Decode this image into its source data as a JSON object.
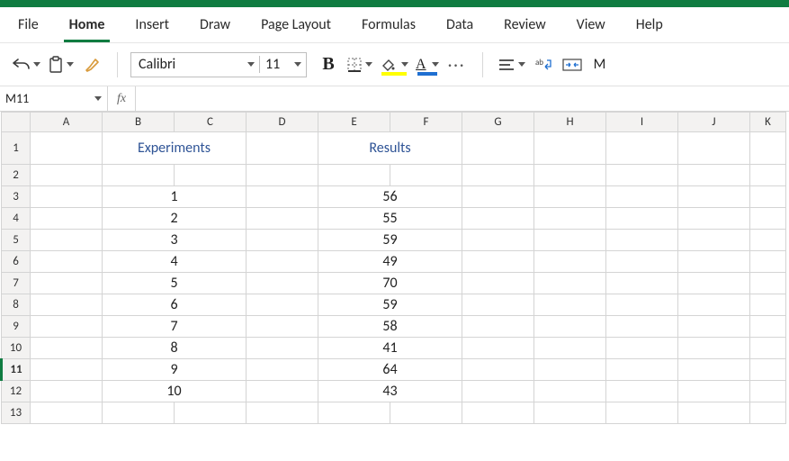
{
  "app": {
    "accent_color": "#107c41"
  },
  "menu": {
    "tabs": [
      "File",
      "Home",
      "Insert",
      "Draw",
      "Page Layout",
      "Formulas",
      "Data",
      "Review",
      "View",
      "Help"
    ],
    "active": "Home"
  },
  "ribbon": {
    "font_name": "Calibri",
    "font_size": "11",
    "bold_label": "B"
  },
  "namebox": {
    "cell_ref": "M11",
    "fx_label": "fx",
    "formula": ""
  },
  "sheet": {
    "columns": [
      "A",
      "B",
      "C",
      "D",
      "E",
      "F",
      "G",
      "H",
      "I",
      "J",
      "K"
    ],
    "col_widths": {
      "A": 80,
      "B": 80,
      "C": 80,
      "D": 80,
      "E": 80,
      "F": 80,
      "G": 80,
      "H": 80,
      "I": 80,
      "J": 80,
      "K": 40
    },
    "row_count": 13,
    "row1_height": 36,
    "selected_row": 11,
    "merged_headers": [
      {
        "row": 1,
        "col": "B",
        "span": 2,
        "text": "Experiments",
        "class": "hdr-text center"
      },
      {
        "row": 1,
        "col": "E",
        "span": 2,
        "text": "Results",
        "class": "hdr-text center"
      }
    ],
    "data": {
      "3": {
        "B_span2_center": "1",
        "E_span2_center": "56"
      },
      "4": {
        "B_span2_center": "2",
        "E_span2_center": "55"
      },
      "5": {
        "B_span2_center": "3",
        "E_span2_center": "59"
      },
      "6": {
        "B_span2_center": "4",
        "E_span2_center": "49"
      },
      "7": {
        "B_span2_center": "5",
        "E_span2_center": "70"
      },
      "8": {
        "B_span2_center": "6",
        "E_span2_center": "59"
      },
      "9": {
        "B_span2_center": "7",
        "E_span2_center": "58"
      },
      "10": {
        "B_span2_center": "8",
        "E_span2_center": "41"
      },
      "11": {
        "B_span2_center": "9",
        "E_span2_center": "64"
      },
      "12": {
        "B_span2_center": "10",
        "E_span2_center": "43"
      }
    }
  }
}
